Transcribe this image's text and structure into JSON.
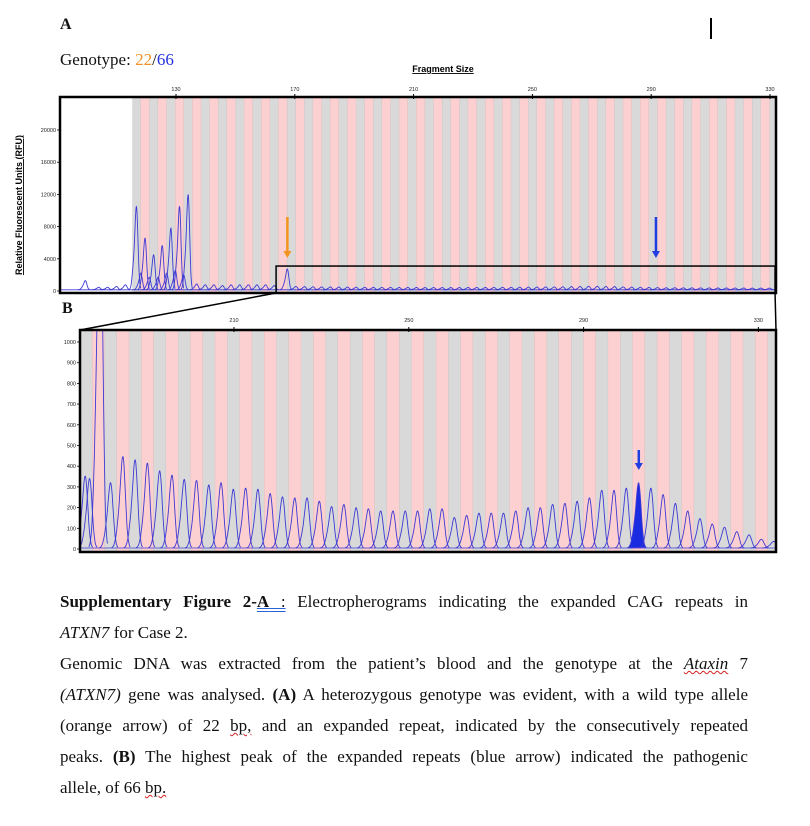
{
  "document": {
    "panel_a_label": "A",
    "panel_b_label": "B",
    "genotype_label": "Genotype: ",
    "genotype_allele_1": "22",
    "genotype_sep": "/",
    "genotype_allele_2": "66",
    "colors": {
      "allele_1": "#f0902a",
      "allele_2": "#2233dd",
      "bin_gray": "#d9d9d9",
      "bin_pink": "#fccfd0",
      "trace": "#3d3ad4"
    }
  },
  "caption": {
    "l1_a": "Supplementary Figure 2-",
    "l1_b": "A",
    "l1_c": " :",
    "l1_d": " Electropherograms indicating the expanded CAG repeats in",
    "l2_a": "ATXN7",
    "l2_b": " for Case 2.",
    "l3_a": "Genomic DNA was extracted from the patient’s blood and the genotype at the ",
    "l3_b": "Ataxin",
    "l3_c": " 7",
    "l4_a": "(ATXN7)",
    "l4_b": " gene was analysed. ",
    "l4_c": "(A)",
    "l4_d": " A heterozygous genotype was evident, with a wild type allele",
    "l5_a": "(orange arrow) of 22 ",
    "l5_b": "bp,",
    "l5_c": " and an expanded repeat, indicated by the consecutively repeated",
    "l6_a": "peaks. ",
    "l6_b": "(B)",
    "l6_c": " The highest peak of the expanded repeats (blue arrow) indicated the pathogenic",
    "l7_a": "allele, of 66 ",
    "l7_b": "bp."
  },
  "chart_data": [
    {
      "id": "A",
      "type": "line",
      "title": "Fragment Size",
      "xlabel": "Fragment Size",
      "ylabel": "Relative Fluorescent Units (RFU)",
      "xticks": [
        130,
        170,
        210,
        250,
        290,
        330
      ],
      "yticks": [
        0,
        4000,
        8000,
        12000,
        16000,
        20000
      ],
      "xlim": [
        91,
        333.4
      ],
      "ylim": [
        0,
        24000
      ],
      "bins": {
        "start": 116.7,
        "step": 2.9,
        "from": 0
      },
      "peaks": {
        "x": [
          99.5,
          104,
          107,
          110,
          113,
          116.7,
          118.2,
          119.6,
          121.0,
          122.5,
          124.0,
          125.4,
          126.9,
          128.3,
          129.8,
          131.2,
          132.6,
          134.1,
          137.0,
          139.9,
          142.8,
          145.7,
          148.6,
          151.5,
          154.4,
          157.3,
          160.2,
          163.1,
          167.5
        ],
        "y": [
          1100,
          300,
          300,
          400,
          600,
          10000,
          2000,
          6200,
          1500,
          4200,
          1500,
          5300,
          2000,
          7400,
          2300,
          10000,
          1800,
          11400,
          700,
          600,
          600,
          500,
          600,
          600,
          600,
          600,
          600,
          500,
          2500
        ]
      },
      "repeat_peaks": {
        "start": 170.4,
        "step": 2.9,
        "values": [
          400,
          380,
          360,
          350,
          340,
          330,
          320,
          310,
          300,
          300,
          290,
          290,
          280,
          280,
          280,
          270,
          270,
          270,
          270,
          270,
          280,
          280,
          280,
          290,
          300,
          300,
          310,
          320,
          330,
          340,
          350,
          360,
          380,
          400,
          420,
          420,
          400,
          380,
          350,
          320,
          300,
          280,
          260,
          250,
          250,
          240,
          240,
          230,
          230,
          220,
          220,
          210,
          210,
          200,
          200,
          200
        ]
      },
      "arrows": [
        {
          "color": "#f39420",
          "x": 167.5,
          "meaning": "wild type allele"
        },
        {
          "color": "#1f3fe0",
          "x": 291.6,
          "meaning": "pathogenic allele"
        }
      ],
      "zoom_box": {
        "x": [
          163.7,
          331.7
        ],
        "y": [
          0,
          3100
        ]
      }
    },
    {
      "id": "B",
      "type": "line",
      "xticks": [
        210,
        250,
        290,
        330
      ],
      "yticks": [
        0,
        100,
        200,
        300,
        400,
        500,
        600,
        700,
        800,
        900,
        1000
      ],
      "xlim": [
        174.8,
        334
      ],
      "ylim": [
        0,
        1058
      ],
      "bins": {
        "start": 181.8,
        "step": 2.81,
        "from": -2
      },
      "peaks": {
        "x": [
          176.0,
          177.0,
          179.4
        ],
        "y": [
          330,
          320,
          1800
        ]
      },
      "repeat_peaks": {
        "start": 181.8,
        "step": 2.81,
        "values": [
          300,
          420,
          405,
          390,
          355,
          335,
          315,
          310,
          290,
          300,
          270,
          275,
          270,
          250,
          235,
          230,
          230,
          215,
          190,
          200,
          185,
          180,
          170,
          170,
          170,
          170,
          180,
          180,
          140,
          150,
          160,
          160,
          160,
          170,
          185,
          185,
          200,
          205,
          215,
          230,
          265,
          265,
          275,
          300,
          275,
          245,
          205,
          170,
          135,
          110,
          95,
          75,
          60,
          40,
          30
        ],
        "highlight_index": 43
      },
      "arrows": [
        {
          "color": "#1f3fe0",
          "index": 43,
          "meaning": "highest expanded peak (66)"
        }
      ]
    }
  ]
}
